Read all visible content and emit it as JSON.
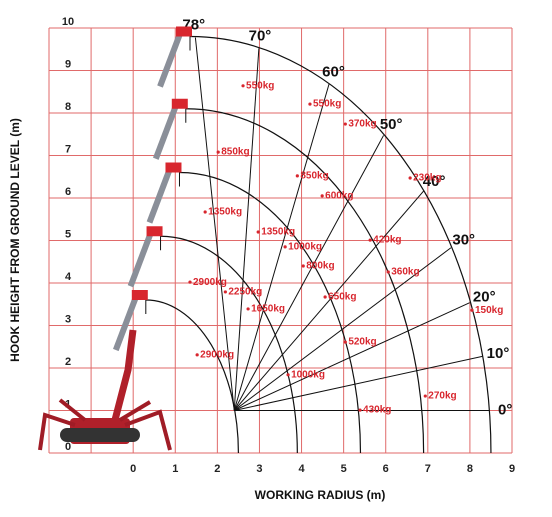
{
  "chart_data": {
    "type": "load-chart",
    "xlabel": "WORKING RADIUS (m)",
    "ylabel": "HOOK HEIGHT FROM GROUND LEVEL (m)",
    "xlim": [
      -2,
      9
    ],
    "ylim": [
      0,
      10
    ],
    "xticks": [
      0,
      1,
      2,
      3,
      4,
      5,
      6,
      7,
      8,
      9
    ],
    "yticks": [
      0,
      1,
      2,
      3,
      4,
      5,
      6,
      7,
      8,
      9,
      10
    ],
    "grid": true,
    "grid_color": "#e06a6a",
    "color": "#d8262e",
    "angles": [
      {
        "value": 0,
        "label": "0°"
      },
      {
        "value": 10,
        "label": "10°"
      },
      {
        "value": 20,
        "label": "20°"
      },
      {
        "value": 30,
        "label": "30°"
      },
      {
        "value": 40,
        "label": "40°"
      },
      {
        "value": 50,
        "label": "50°"
      },
      {
        "value": 60,
        "label": "60°"
      },
      {
        "value": 70,
        "label": "70°"
      },
      {
        "value": 78,
        "label": "78°"
      }
    ],
    "loads": [
      {
        "label": "550kg",
        "x": 2.61,
        "y": 8.64
      },
      {
        "label": "550kg",
        "x": 4.2,
        "y": 8.21
      },
      {
        "label": "370kg",
        "x": 5.04,
        "y": 7.74
      },
      {
        "label": "850kg",
        "x": 2.02,
        "y": 7.08
      },
      {
        "label": "850kg",
        "x": 3.9,
        "y": 6.52
      },
      {
        "label": "600kg",
        "x": 4.49,
        "y": 6.05
      },
      {
        "label": "230kg",
        "x": 6.58,
        "y": 6.47
      },
      {
        "label": "1350kg",
        "x": 1.71,
        "y": 5.67
      },
      {
        "label": "1350kg",
        "x": 2.97,
        "y": 5.2
      },
      {
        "label": "1000kg",
        "x": 3.61,
        "y": 4.85
      },
      {
        "label": "420kg",
        "x": 5.63,
        "y": 5.01
      },
      {
        "label": "800kg",
        "x": 4.04,
        "y": 4.4
      },
      {
        "label": "360kg",
        "x": 6.06,
        "y": 4.26
      },
      {
        "label": "2900kg",
        "x": 1.35,
        "y": 4.02
      },
      {
        "label": "2250kg",
        "x": 2.19,
        "y": 3.79
      },
      {
        "label": "1650kg",
        "x": 2.73,
        "y": 3.39
      },
      {
        "label": "650kg",
        "x": 4.56,
        "y": 3.67
      },
      {
        "label": "150kg",
        "x": 8.05,
        "y": 3.36
      },
      {
        "label": "520kg",
        "x": 5.04,
        "y": 2.61
      },
      {
        "label": "2900kg",
        "x": 1.52,
        "y": 2.31
      },
      {
        "label": "1000kg",
        "x": 3.68,
        "y": 1.84
      },
      {
        "label": "270kg",
        "x": 6.94,
        "y": 1.34
      },
      {
        "label": "430kg",
        "x": 5.39,
        "y": 1.01
      }
    ]
  }
}
